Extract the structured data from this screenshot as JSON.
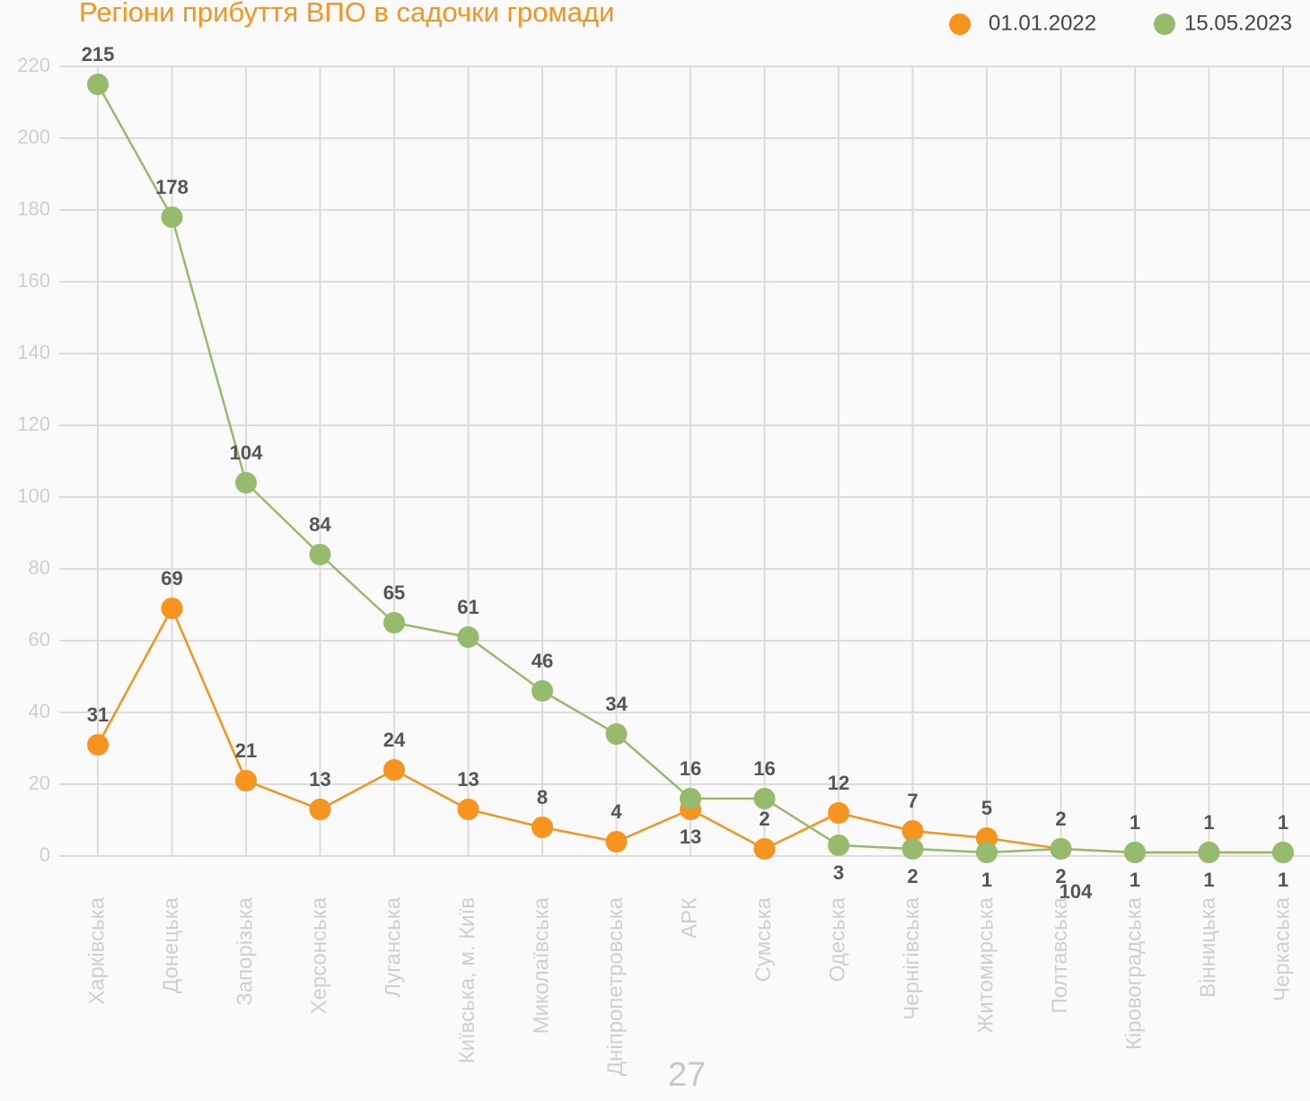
{
  "chart_data": {
    "type": "line",
    "title": "Регіони прибуття ВПО в садочки громади",
    "categories": [
      "Харківська",
      "Донецька",
      "Запорізька",
      "Херсонська",
      "Луганська",
      "Київська, м. Київ",
      "Миколаївська",
      "Дніпропетровська",
      "АРК",
      "Сумська",
      "Одеська",
      "Чернігівська",
      "Житомирська",
      "Полтавська",
      "Кіровоградська",
      "Вінницька",
      "Черкаська"
    ],
    "series": [
      {
        "name": "01.01.2022",
        "color": "#f7941d",
        "values": [
          31,
          69,
          21,
          13,
          24,
          13,
          8,
          4,
          13,
          2,
          12,
          7,
          5,
          2,
          1,
          1,
          1
        ]
      },
      {
        "name": "15.05.2023",
        "color": "#97bb6d",
        "values": [
          215,
          178,
          104,
          84,
          65,
          61,
          46,
          34,
          16,
          16,
          3,
          2,
          1,
          2,
          1,
          1,
          1
        ]
      }
    ],
    "ylim": [
      0,
      220
    ],
    "yticks": [
      0,
      20,
      40,
      60,
      80,
      100,
      120,
      140,
      160,
      180,
      200,
      220
    ],
    "grid": true,
    "legend": "top-right",
    "annotations": [
      "104",
      "27"
    ]
  }
}
